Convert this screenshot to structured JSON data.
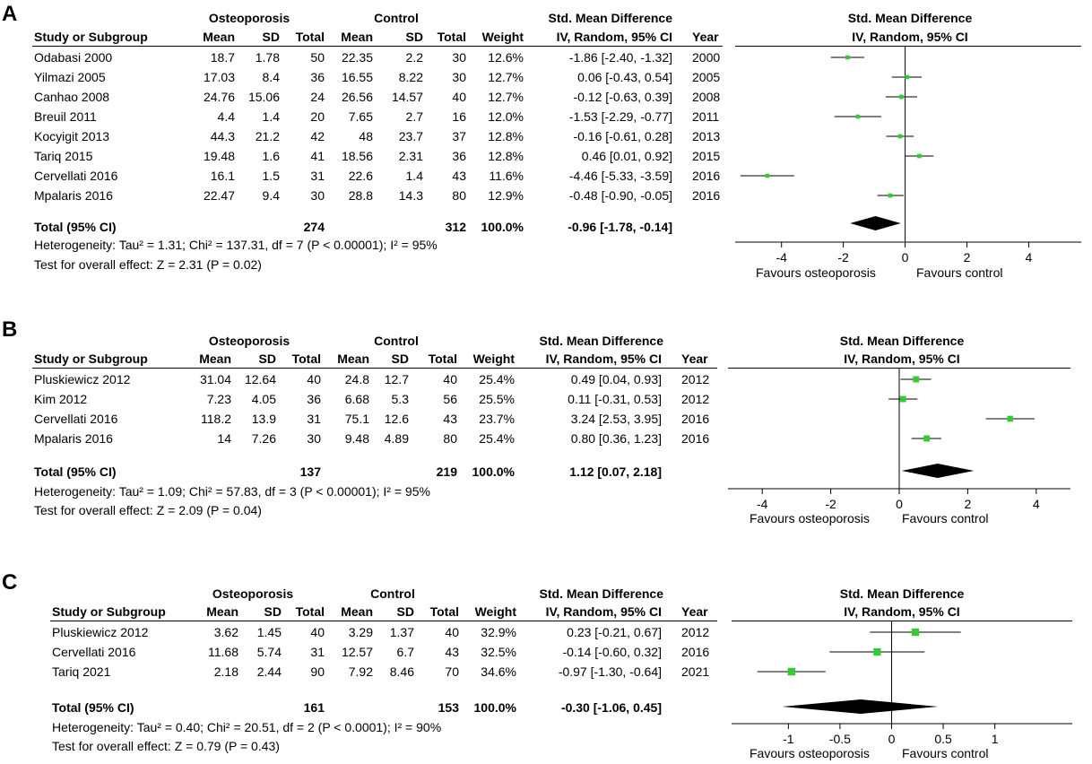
{
  "headers": {
    "study": "Study or Subgroup",
    "group1": "Osteoporosis",
    "group2": "Control",
    "mean": "Mean",
    "sd": "SD",
    "total": "Total",
    "weight": "Weight",
    "effect_title": "Std. Mean Difference",
    "effect_method": "IV, Random, 95% CI",
    "year": "Year"
  },
  "colors": {
    "marker": "#33cc33",
    "diamond": "#000000",
    "line": "#000000"
  },
  "panels": [
    {
      "label": "A",
      "total_label": "Total (95% CI)",
      "total_n1": "274",
      "total_n2": "312",
      "total_weight": "100.0%",
      "total_ci": "-0.96 [-1.78, -0.14]",
      "heterogeneity": "Heterogeneity: Tau² = 1.31; Chi² = 137.31, df = 7 (P < 0.00001); I² = 95%",
      "overall": "Test for overall effect: Z = 2.31 (P = 0.02)",
      "favours_left": "Favours osteoporosis",
      "favours_right": "Favours control"
    },
    {
      "label": "B",
      "total_label": "Total (95% CI)",
      "total_n1": "137",
      "total_n2": "219",
      "total_weight": "100.0%",
      "total_ci": "1.12 [0.07, 2.18]",
      "heterogeneity": "Heterogeneity: Tau² = 1.09; Chi² = 57.83, df = 3 (P < 0.00001); I² = 95%",
      "overall": "Test for overall effect: Z = 2.09 (P = 0.04)",
      "favours_left": "Favours osteoporosis",
      "favours_right": "Favours control"
    },
    {
      "label": "C",
      "total_label": "Total (95% CI)",
      "total_n1": "161",
      "total_n2": "153",
      "total_weight": "100.0%",
      "total_ci": "-0.30 [-1.06, 0.45]",
      "heterogeneity": "Heterogeneity: Tau² = 0.40; Chi² = 20.51, df = 2 (P < 0.0001); I² = 90%",
      "overall": "Test for overall effect: Z = 0.79 (P = 0.43)",
      "favours_left": "Favours osteoporosis",
      "favours_right": "Favours control"
    }
  ],
  "chart_data": [
    {
      "type": "forest",
      "title": "Std. Mean Difference",
      "subtitle": "IV, Random, 95% CI",
      "xlim": [
        -5.5,
        5.7
      ],
      "ticks": [
        -4,
        -2,
        0,
        2,
        4
      ],
      "tick_labels": [
        "-4",
        "-2",
        "0",
        "2",
        "4"
      ],
      "studies": [
        {
          "name": "Odabasi 2000",
          "m1": "18.7",
          "sd1": "1.78",
          "n1": "50",
          "m2": "22.35",
          "sd2": "2.2",
          "n2": "30",
          "weight": "12.6%",
          "ci_text": "-1.86 [-2.40, -1.32]",
          "year": "2000",
          "est": -1.86,
          "lo": -2.4,
          "hi": -1.32,
          "w": 12.6
        },
        {
          "name": "Yilmazi 2005",
          "m1": "17.03",
          "sd1": "8.4",
          "n1": "36",
          "m2": "16.55",
          "sd2": "8.22",
          "n2": "30",
          "weight": "12.7%",
          "ci_text": "0.06 [-0.43, 0.54]",
          "year": "2005",
          "est": 0.06,
          "lo": -0.43,
          "hi": 0.54,
          "w": 12.7
        },
        {
          "name": "Canhao 2008",
          "m1": "24.76",
          "sd1": "15.06",
          "n1": "24",
          "m2": "26.56",
          "sd2": "14.57",
          "n2": "40",
          "weight": "12.7%",
          "ci_text": "-0.12 [-0.63, 0.39]",
          "year": "2008",
          "est": -0.12,
          "lo": -0.63,
          "hi": 0.39,
          "w": 12.7
        },
        {
          "name": "Breuil 2011",
          "m1": "4.4",
          "sd1": "1.4",
          "n1": "20",
          "m2": "7.65",
          "sd2": "2.7",
          "n2": "16",
          "weight": "12.0%",
          "ci_text": "-1.53 [-2.29, -0.77]",
          "year": "2011",
          "est": -1.53,
          "lo": -2.29,
          "hi": -0.77,
          "w": 12.0
        },
        {
          "name": "Kocyigit 2013",
          "m1": "44.3",
          "sd1": "21.2",
          "n1": "42",
          "m2": "48",
          "sd2": "23.7",
          "n2": "37",
          "weight": "12.8%",
          "ci_text": "-0.16 [-0.61, 0.28]",
          "year": "2013",
          "est": -0.16,
          "lo": -0.61,
          "hi": 0.28,
          "w": 12.8
        },
        {
          "name": "Tariq 2015",
          "m1": "19.48",
          "sd1": "1.6",
          "n1": "41",
          "m2": "18.56",
          "sd2": "2.31",
          "n2": "36",
          "weight": "12.8%",
          "ci_text": "0.46 [0.01, 0.92]",
          "year": "2015",
          "est": 0.46,
          "lo": 0.01,
          "hi": 0.92,
          "w": 12.8
        },
        {
          "name": "Cervellati 2016",
          "m1": "16.1",
          "sd1": "1.5",
          "n1": "31",
          "m2": "22.6",
          "sd2": "1.4",
          "n2": "43",
          "weight": "11.6%",
          "ci_text": "-4.46 [-5.33, -3.59]",
          "year": "2016",
          "est": -4.46,
          "lo": -5.33,
          "hi": -3.59,
          "w": 11.6
        },
        {
          "name": "Mpalaris 2016",
          "m1": "22.47",
          "sd1": "9.4",
          "n1": "30",
          "m2": "28.8",
          "sd2": "14.3",
          "n2": "80",
          "weight": "12.9%",
          "ci_text": "-0.48 [-0.90, -0.05]",
          "year": "2016",
          "est": -0.48,
          "lo": -0.9,
          "hi": -0.05,
          "w": 12.9
        }
      ],
      "pooled": {
        "est": -0.96,
        "lo": -1.78,
        "hi": -0.14
      },
      "xlabel_left": "Favours osteoporosis",
      "xlabel_right": "Favours control"
    },
    {
      "type": "forest",
      "title": "Std. Mean Difference",
      "subtitle": "IV, Random, 95% CI",
      "xlim": [
        -5,
        5
      ],
      "ticks": [
        -4,
        -2,
        0,
        2,
        4
      ],
      "tick_labels": [
        "-4",
        "-2",
        "0",
        "2",
        "4"
      ],
      "studies": [
        {
          "name": "Pluskiewicz 2012",
          "m1": "31.04",
          "sd1": "12.64",
          "n1": "40",
          "m2": "24.8",
          "sd2": "12.7",
          "n2": "40",
          "weight": "25.4%",
          "ci_text": "0.49 [0.04, 0.93]",
          "year": "2012",
          "est": 0.49,
          "lo": 0.04,
          "hi": 0.93,
          "w": 25.4
        },
        {
          "name": "Kim 2012",
          "m1": "7.23",
          "sd1": "4.05",
          "n1": "36",
          "m2": "6.68",
          "sd2": "5.3",
          "n2": "56",
          "weight": "25.5%",
          "ci_text": "0.11 [-0.31, 0.53]",
          "year": "2012",
          "est": 0.11,
          "lo": -0.31,
          "hi": 0.53,
          "w": 25.5
        },
        {
          "name": "Cervellati 2016",
          "m1": "118.2",
          "sd1": "13.9",
          "n1": "31",
          "m2": "75.1",
          "sd2": "12.6",
          "n2": "43",
          "weight": "23.7%",
          "ci_text": "3.24 [2.53, 3.95]",
          "year": "2016",
          "est": 3.24,
          "lo": 2.53,
          "hi": 3.95,
          "w": 23.7
        },
        {
          "name": "Mpalaris 2016",
          "m1": "14",
          "sd1": "7.26",
          "n1": "30",
          "m2": "9.48",
          "sd2": "4.89",
          "n2": "80",
          "weight": "25.4%",
          "ci_text": "0.80 [0.36, 1.23]",
          "year": "2016",
          "est": 0.8,
          "lo": 0.36,
          "hi": 1.23,
          "w": 25.4
        }
      ],
      "pooled": {
        "est": 1.12,
        "lo": 0.07,
        "hi": 2.18
      },
      "xlabel_left": "Favours osteoporosis",
      "xlabel_right": "Favours control"
    },
    {
      "type": "forest",
      "title": "Std. Mean Difference",
      "subtitle": "IV, Random, 95% CI",
      "xlim": [
        -1.55,
        1.75
      ],
      "ticks": [
        -1,
        -0.5,
        0,
        0.5,
        1
      ],
      "tick_labels": [
        "-1",
        "-0.5",
        "0",
        "0.5",
        "1"
      ],
      "studies": [
        {
          "name": "Pluskiewicz 2012",
          "m1": "3.62",
          "sd1": "1.45",
          "n1": "40",
          "m2": "3.29",
          "sd2": "1.37",
          "n2": "40",
          "weight": "32.9%",
          "ci_text": "0.23 [-0.21, 0.67]",
          "year": "2012",
          "est": 0.23,
          "lo": -0.21,
          "hi": 0.67,
          "w": 32.9
        },
        {
          "name": "Cervellati 2016",
          "m1": "11.68",
          "sd1": "5.74",
          "n1": "31",
          "m2": "12.57",
          "sd2": "6.7",
          "n2": "43",
          "weight": "32.5%",
          "ci_text": "-0.14 [-0.60, 0.32]",
          "year": "2016",
          "est": -0.14,
          "lo": -0.6,
          "hi": 0.32,
          "w": 32.5
        },
        {
          "name": "Tariq 2021",
          "m1": "2.18",
          "sd1": "2.44",
          "n1": "90",
          "m2": "7.92",
          "sd2": "8.46",
          "n2": "70",
          "weight": "34.6%",
          "ci_text": "-0.97 [-1.30, -0.64]",
          "year": "2021",
          "est": -0.97,
          "lo": -1.3,
          "hi": -0.64,
          "w": 34.6
        }
      ],
      "pooled": {
        "est": -0.3,
        "lo": -1.06,
        "hi": 0.45
      },
      "xlabel_left": "Favours osteoporosis",
      "xlabel_right": "Favours control"
    }
  ]
}
